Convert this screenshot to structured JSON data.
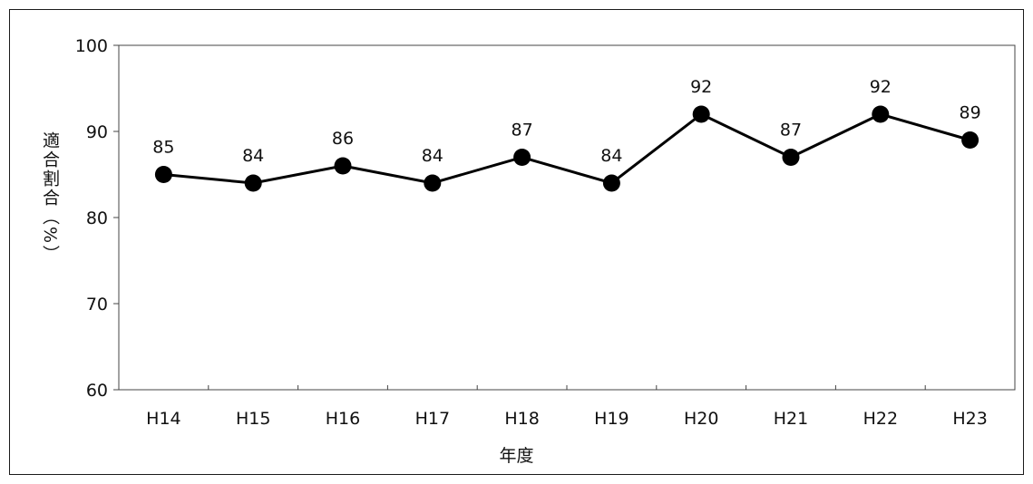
{
  "chart_data": {
    "type": "line",
    "categories": [
      "H14",
      "H15",
      "H16",
      "H17",
      "H18",
      "H19",
      "H20",
      "H21",
      "H22",
      "H23"
    ],
    "series": [
      {
        "values": [
          85,
          84,
          86,
          84,
          87,
          84,
          92,
          87,
          92,
          89
        ]
      }
    ],
    "ylim": [
      60,
      100
    ],
    "yticks": [
      60,
      70,
      80,
      90,
      100
    ],
    "ylabel": "適合割合（%）",
    "xlabel": "年度",
    "grid": false,
    "legend": "none",
    "color": "#000000"
  }
}
